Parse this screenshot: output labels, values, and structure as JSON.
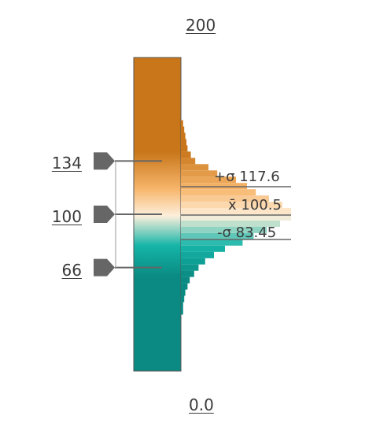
{
  "scale": {
    "max_label": "200",
    "min_label": "0.0",
    "min_value": 0,
    "max_value": 200
  },
  "ticks": [
    {
      "label": "134",
      "value": 134
    },
    {
      "label": "100",
      "value": 100
    },
    {
      "label": "66",
      "value": 66
    }
  ],
  "stats": {
    "plus_sigma": "+σ 117.6",
    "mean": "x̄ 100.5",
    "minus_sigma": "-σ 83.45"
  },
  "colors": {
    "high": "#c87619",
    "mid_high": "#f7b66c",
    "middle": "#fdefdc",
    "mid_low": "#15b5a8",
    "low": "#0a8a82",
    "marker": "#666666",
    "line": "#666666"
  },
  "histogram": {
    "bins": [
      {
        "value": 158,
        "frac": 0.02
      },
      {
        "value": 154,
        "frac": 0.03
      },
      {
        "value": 150,
        "frac": 0.04
      },
      {
        "value": 146,
        "frac": 0.05
      },
      {
        "value": 142,
        "frac": 0.06
      },
      {
        "value": 138,
        "frac": 0.09
      },
      {
        "value": 134,
        "frac": 0.13
      },
      {
        "value": 130,
        "frac": 0.25
      },
      {
        "value": 126,
        "frac": 0.33
      },
      {
        "value": 122,
        "frac": 0.5
      },
      {
        "value": 118,
        "frac": 0.6
      },
      {
        "value": 114,
        "frac": 0.68
      },
      {
        "value": 110,
        "frac": 0.8
      },
      {
        "value": 106,
        "frac": 0.92
      },
      {
        "value": 102,
        "frac": 1.0
      },
      {
        "value": 98,
        "frac": 1.0
      },
      {
        "value": 94,
        "frac": 0.9
      },
      {
        "value": 90,
        "frac": 0.78
      },
      {
        "value": 86,
        "frac": 0.66
      },
      {
        "value": 82,
        "frac": 0.56
      },
      {
        "value": 78,
        "frac": 0.4
      },
      {
        "value": 74,
        "frac": 0.3
      },
      {
        "value": 70,
        "frac": 0.22
      },
      {
        "value": 66,
        "frac": 0.16
      },
      {
        "value": 62,
        "frac": 0.12
      },
      {
        "value": 58,
        "frac": 0.08
      },
      {
        "value": 54,
        "frac": 0.06
      },
      {
        "value": 50,
        "frac": 0.04
      },
      {
        "value": 46,
        "frac": 0.03
      },
      {
        "value": 42,
        "frac": 0.02
      },
      {
        "value": 38,
        "frac": 0.02
      }
    ]
  }
}
